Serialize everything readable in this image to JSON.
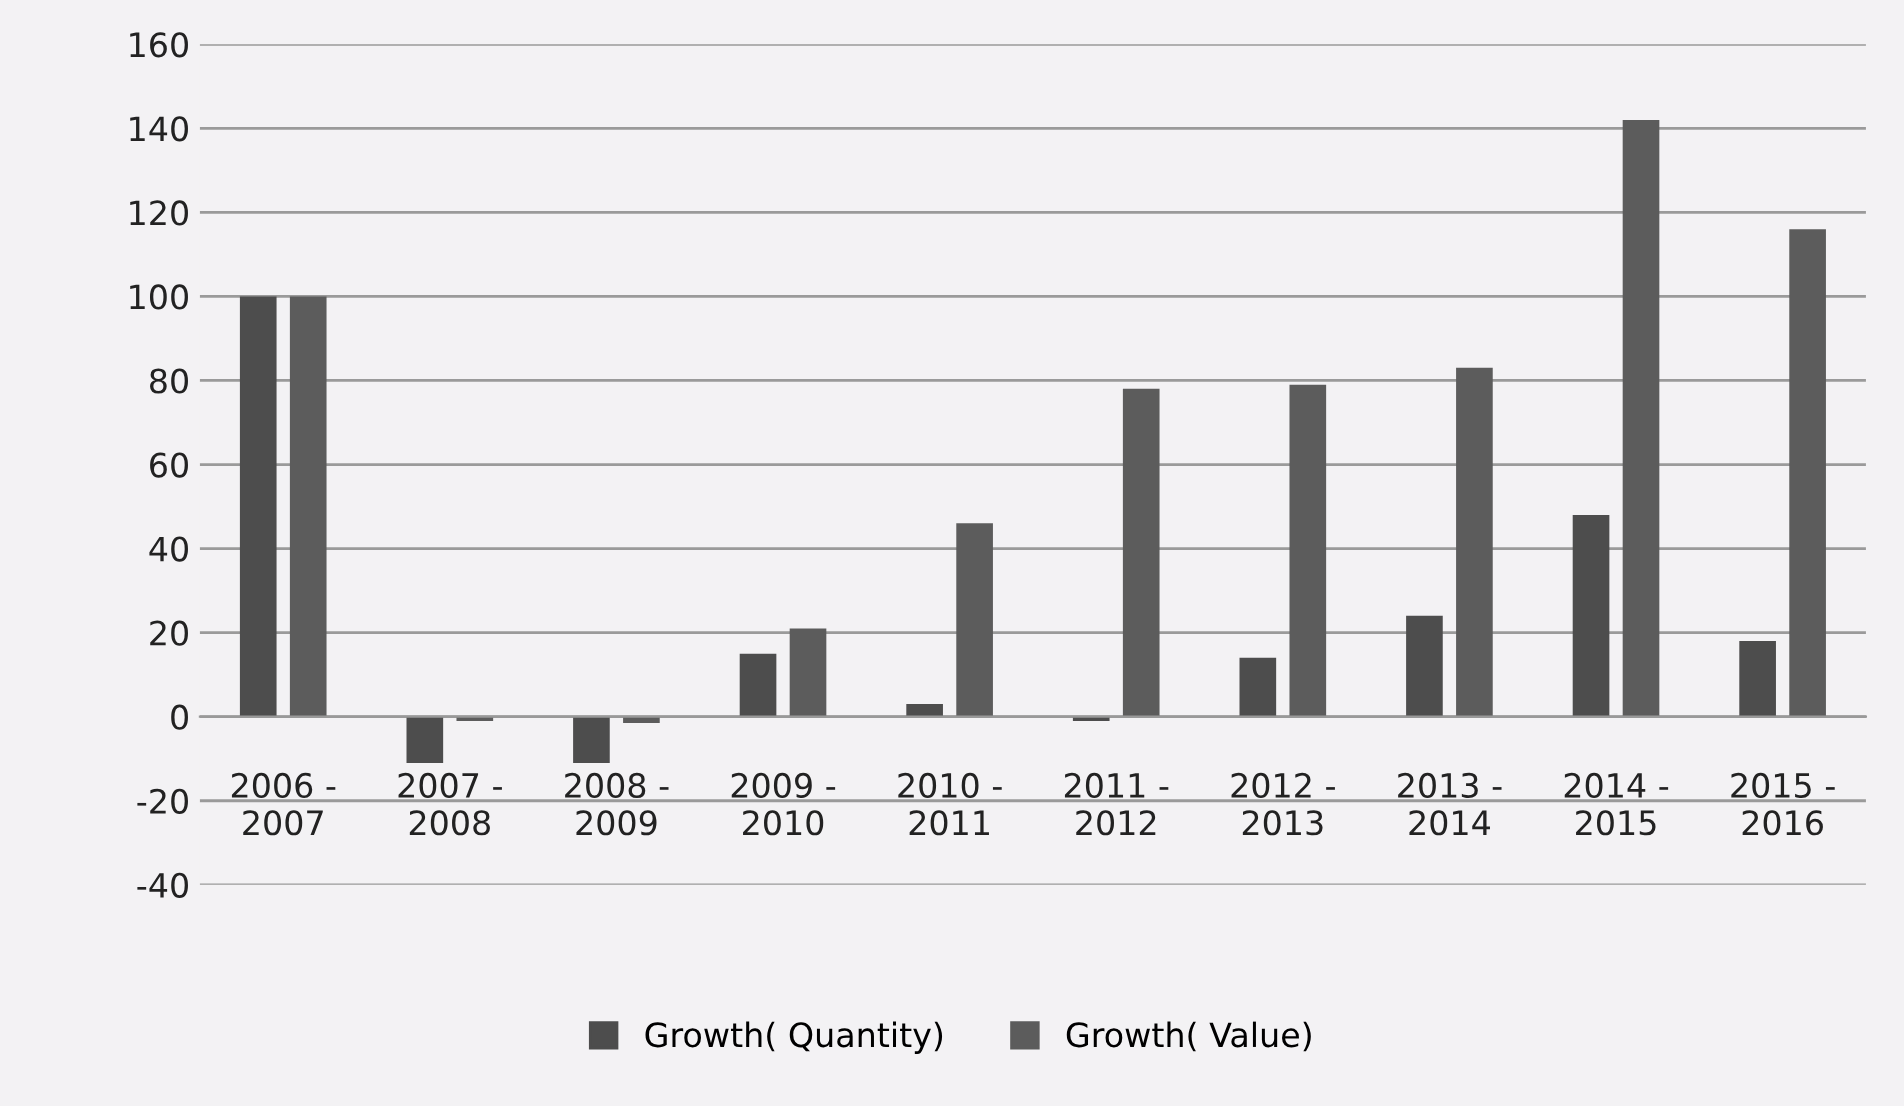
{
  "chart_data": {
    "type": "bar",
    "categories": [
      "2006 -\n2007",
      "2007 -\n2008",
      "2008 -\n2009",
      "2009 -\n2010",
      "2010 -\n2011",
      "2011 -\n2012",
      "2012 -\n2013",
      "2013 -\n2014",
      "2014 -\n2015",
      "2015 -\n2016"
    ],
    "series": [
      {
        "name": "Growth( Quantity)",
        "color": "#4d4d4d",
        "values": [
          100,
          -11,
          -11,
          15,
          3,
          -1,
          14,
          24,
          48,
          18
        ]
      },
      {
        "name": "Growth( Value)",
        "color": "#5c5c5c",
        "values": [
          100,
          -1,
          -1.5,
          21,
          46,
          78,
          79,
          83,
          142,
          116
        ]
      }
    ],
    "ylim": [
      -40,
      160
    ],
    "yticks": [
      -40,
      -20,
      0,
      20,
      40,
      60,
      80,
      100,
      120,
      140,
      160
    ],
    "grid": "y",
    "legend": "bottom"
  }
}
